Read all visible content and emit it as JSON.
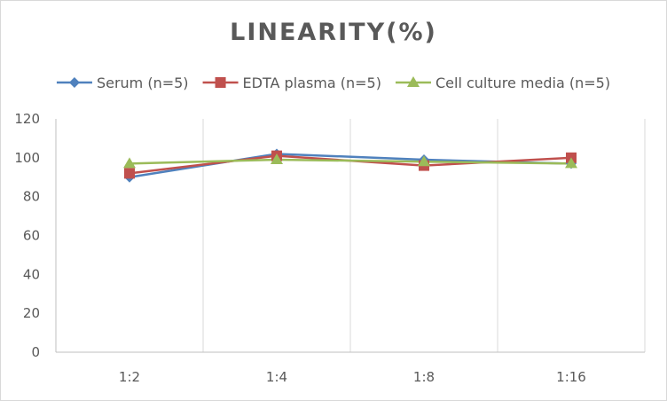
{
  "chart_data": {
    "type": "line",
    "title": "LINEARITY(%)",
    "categories": [
      "1:2",
      "1:4",
      "1:8",
      "1:16"
    ],
    "ylim": [
      0,
      120
    ],
    "yticks": [
      0,
      20,
      40,
      60,
      80,
      100,
      120
    ],
    "grid": "vertical",
    "legend_position": "top",
    "series": [
      {
        "name": "Serum (n=5)",
        "values": [
          90,
          102,
          99,
          97
        ],
        "color": "#4f81bd",
        "marker": "diamond"
      },
      {
        "name": "EDTA plasma (n=5)",
        "values": [
          92,
          101,
          96,
          100
        ],
        "color": "#c0504d",
        "marker": "square"
      },
      {
        "name": "Cell culture media (n=5)",
        "values": [
          97,
          99,
          98,
          97
        ],
        "color": "#9bbb59",
        "marker": "triangle"
      }
    ]
  }
}
